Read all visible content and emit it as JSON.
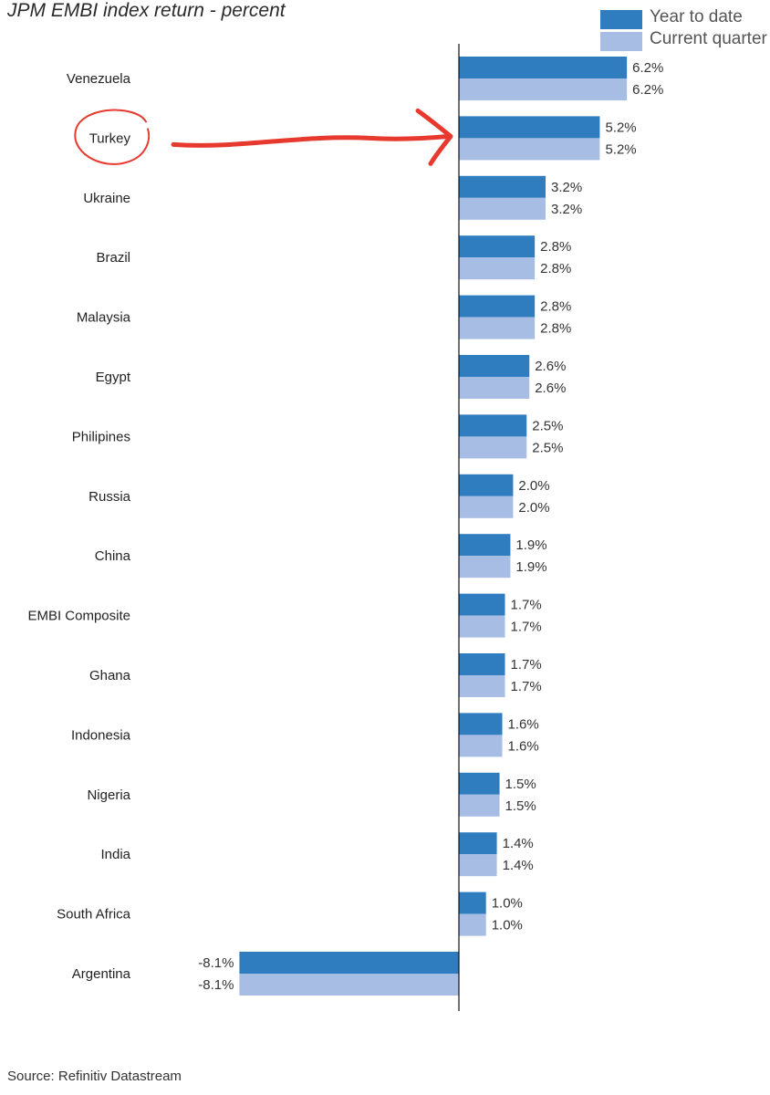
{
  "chart_data": {
    "type": "bar",
    "orientation": "horizontal",
    "title": "JPM EMBI index return - percent",
    "categories": [
      "Venezuela",
      "Turkey",
      "Ukraine",
      "Brazil",
      "Malaysia",
      "Egypt",
      "Philipines",
      "Russia",
      "China",
      "EMBI Composite",
      "Ghana",
      "Indonesia",
      "Nigeria",
      "India",
      "South Africa",
      "Argentina"
    ],
    "series": [
      {
        "name": "Year to date",
        "color": "#2f7cbf",
        "values": [
          6.2,
          5.2,
          3.2,
          2.8,
          2.8,
          2.6,
          2.5,
          2.0,
          1.9,
          1.7,
          1.7,
          1.6,
          1.5,
          1.4,
          1.0,
          -8.1
        ],
        "labels": [
          "6.2%",
          "5.2%",
          "3.2%",
          "2.8%",
          "2.8%",
          "2.6%",
          "2.5%",
          "2.0%",
          "1.9%",
          "1.7%",
          "1.7%",
          "1.6%",
          "1.5%",
          "1.4%",
          "1.0%",
          "-8.1%"
        ]
      },
      {
        "name": "Current quarter",
        "color": "#a7bde3",
        "values": [
          6.2,
          5.2,
          3.2,
          2.8,
          2.8,
          2.6,
          2.5,
          2.0,
          1.9,
          1.7,
          1.7,
          1.6,
          1.5,
          1.4,
          1.0,
          -8.1
        ],
        "labels": [
          "6.2%",
          "5.2%",
          "3.2%",
          "2.8%",
          "2.8%",
          "2.6%",
          "2.5%",
          "2.0%",
          "1.9%",
          "1.7%",
          "1.7%",
          "1.6%",
          "1.5%",
          "1.4%",
          "1.0%",
          "-8.1%"
        ]
      }
    ],
    "legend_position": "top-right",
    "grid": false,
    "annotation": {
      "target_category": "Turkey",
      "shapes": [
        "red circle around label",
        "red hand-drawn arrow pointing to bar"
      ],
      "color": "#e8392e"
    },
    "source": "Source:  Refinitiv Datastream"
  }
}
